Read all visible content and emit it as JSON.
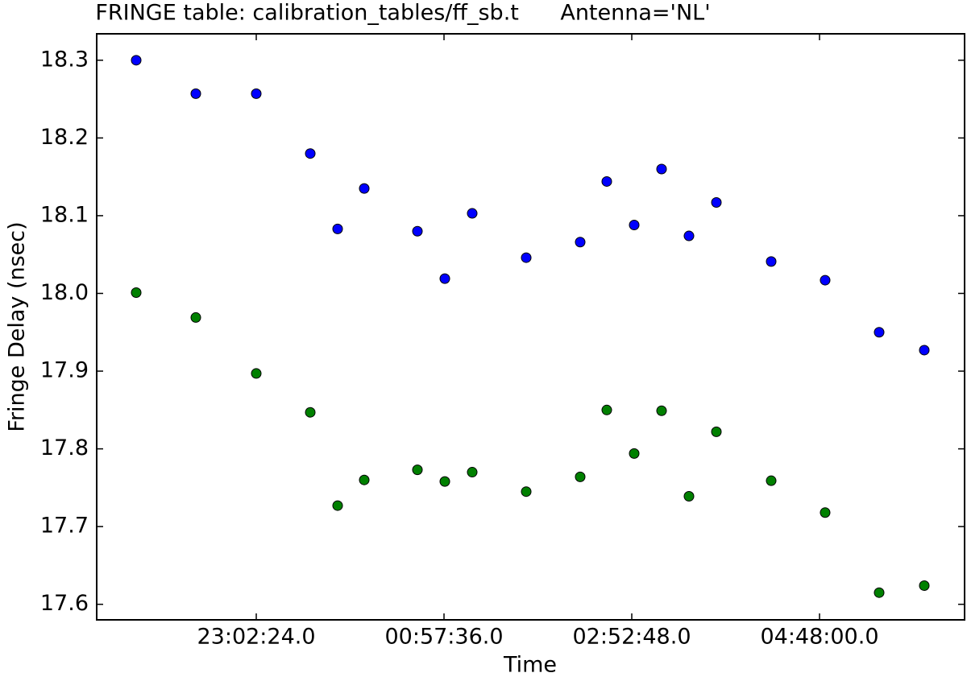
{
  "chart_data": {
    "type": "scatter",
    "title": "FRINGE table: calibration_tables/ff_sb.t      Antenna='NL'",
    "x_label": "Time",
    "y_label": "Fringe Delay (nsec)",
    "xlim": [
      77070,
      109020
    ],
    "ylim": [
      17.58,
      18.334
    ],
    "xticks": [
      {
        "value": 82944,
        "label": "23:02:24.0"
      },
      {
        "value": 89856,
        "label": "00:57:36.0"
      },
      {
        "value": 96768,
        "label": "02:52:48.0"
      },
      {
        "value": 103680,
        "label": "04:48:00.0"
      }
    ],
    "yticks": [
      17.6,
      17.7,
      17.8,
      17.9,
      {
        "value": 18,
        "label": "18.0"
      },
      18.1,
      18.2,
      18.3
    ],
    "x": [
      78524,
      80719,
      82944,
      84932,
      85940,
      86919,
      88877,
      89886,
      90894,
      92882,
      94869,
      95848,
      96857,
      97865,
      98874,
      99883,
      101900,
      103887,
      105875,
      107536
    ],
    "series": [
      {
        "color": "#0000ff",
        "values": [
          18.3,
          18.257,
          18.257,
          18.18,
          18.083,
          18.135,
          18.08,
          18.019,
          18.103,
          18.046,
          18.066,
          18.144,
          18.088,
          18.16,
          18.074,
          18.117,
          18.041,
          18.017,
          17.95,
          17.927
        ]
      },
      {
        "color": "#008000",
        "values": [
          18.001,
          17.969,
          17.897,
          17.847,
          17.727,
          17.76,
          17.773,
          17.758,
          17.77,
          17.745,
          17.764,
          17.85,
          17.794,
          17.849,
          17.739,
          17.822,
          17.759,
          17.718,
          17.615,
          17.624
        ]
      }
    ]
  }
}
